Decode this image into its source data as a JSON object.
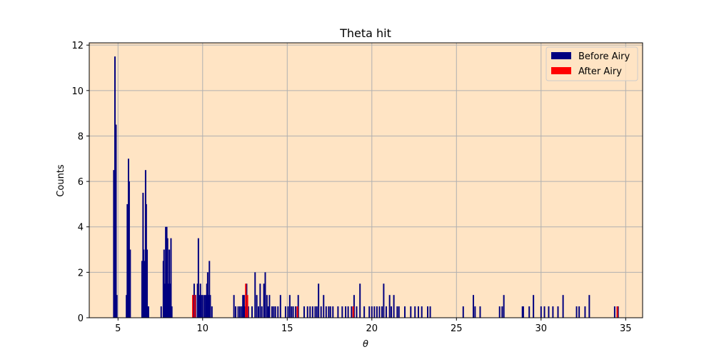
{
  "colors": {
    "plot_background": "#FFE4C4",
    "before": "#000080",
    "after": "#FF0000",
    "grid": "#B0B0B0"
  },
  "chart_data": {
    "type": "bar",
    "title": "Theta hit",
    "xlabel": "θ",
    "ylabel": "Counts",
    "xlim": [
      3.3,
      36.0
    ],
    "ylim": [
      0,
      12.1
    ],
    "xticks": [
      5,
      10,
      15,
      20,
      25,
      30,
      35
    ],
    "yticks": [
      0,
      2,
      4,
      6,
      8,
      10,
      12
    ],
    "grid": true,
    "legend_position": "top-right",
    "bar_width": 0.08,
    "series": [
      {
        "name": "Before Airy",
        "color": "#000080",
        "points": [
          [
            4.75,
            6.5
          ],
          [
            4.82,
            11.5
          ],
          [
            4.88,
            8.5
          ],
          [
            4.93,
            1.0
          ],
          [
            5.5,
            1.0
          ],
          [
            5.55,
            5.0
          ],
          [
            5.62,
            7.0
          ],
          [
            5.66,
            6.0
          ],
          [
            5.72,
            3.0
          ],
          [
            6.42,
            2.5
          ],
          [
            6.48,
            5.5
          ],
          [
            6.52,
            3.0
          ],
          [
            6.58,
            2.5
          ],
          [
            6.63,
            6.5
          ],
          [
            6.67,
            5.0
          ],
          [
            6.72,
            3.0
          ],
          [
            6.8,
            0.5
          ],
          [
            7.55,
            0.5
          ],
          [
            7.68,
            2.5
          ],
          [
            7.72,
            3.0
          ],
          [
            7.78,
            1.5
          ],
          [
            7.82,
            4.0
          ],
          [
            7.88,
            4.0
          ],
          [
            7.93,
            3.5
          ],
          [
            7.97,
            1.5
          ],
          [
            8.03,
            3.0
          ],
          [
            8.07,
            1.5
          ],
          [
            8.13,
            3.5
          ],
          [
            8.18,
            0.5
          ],
          [
            9.45,
            1.0
          ],
          [
            9.5,
            1.5
          ],
          [
            9.58,
            1.0
          ],
          [
            9.7,
            1.5
          ],
          [
            9.75,
            3.5
          ],
          [
            9.8,
            1.0
          ],
          [
            9.87,
            1.5
          ],
          [
            9.92,
            1.0
          ],
          [
            10.0,
            1.0
          ],
          [
            10.1,
            1.0
          ],
          [
            10.18,
            1.0
          ],
          [
            10.25,
            1.5
          ],
          [
            10.3,
            2.0
          ],
          [
            10.35,
            1.0
          ],
          [
            10.4,
            2.5
          ],
          [
            10.45,
            1.0
          ],
          [
            10.55,
            0.5
          ],
          [
            11.85,
            1.0
          ],
          [
            11.95,
            0.5
          ],
          [
            12.1,
            0.5
          ],
          [
            12.2,
            0.5
          ],
          [
            12.3,
            0.5
          ],
          [
            12.38,
            1.0
          ],
          [
            12.45,
            1.0
          ],
          [
            12.52,
            0.5
          ],
          [
            12.6,
            1.5
          ],
          [
            12.7,
            0.5
          ],
          [
            12.92,
            0.5
          ],
          [
            13.1,
            2.0
          ],
          [
            13.2,
            1.0
          ],
          [
            13.3,
            0.5
          ],
          [
            13.4,
            1.5
          ],
          [
            13.5,
            0.5
          ],
          [
            13.62,
            1.5
          ],
          [
            13.7,
            2.0
          ],
          [
            13.8,
            1.0
          ],
          [
            13.88,
            0.5
          ],
          [
            13.95,
            1.0
          ],
          [
            14.1,
            0.5
          ],
          [
            14.2,
            0.5
          ],
          [
            14.3,
            0.5
          ],
          [
            14.45,
            0.5
          ],
          [
            14.6,
            1.0
          ],
          [
            14.9,
            0.5
          ],
          [
            15.05,
            0.5
          ],
          [
            15.15,
            1.0
          ],
          [
            15.25,
            0.5
          ],
          [
            15.35,
            0.5
          ],
          [
            15.5,
            0.5
          ],
          [
            15.65,
            1.0
          ],
          [
            16.0,
            0.5
          ],
          [
            16.2,
            0.5
          ],
          [
            16.35,
            0.5
          ],
          [
            16.5,
            0.5
          ],
          [
            16.65,
            0.5
          ],
          [
            16.75,
            0.5
          ],
          [
            16.85,
            1.5
          ],
          [
            17.0,
            0.5
          ],
          [
            17.15,
            1.0
          ],
          [
            17.3,
            0.5
          ],
          [
            17.45,
            0.5
          ],
          [
            17.55,
            0.5
          ],
          [
            17.7,
            0.5
          ],
          [
            18.0,
            0.5
          ],
          [
            18.25,
            0.5
          ],
          [
            18.45,
            0.5
          ],
          [
            18.6,
            0.5
          ],
          [
            18.8,
            0.5
          ],
          [
            18.95,
            1.0
          ],
          [
            19.1,
            0.5
          ],
          [
            19.3,
            1.5
          ],
          [
            19.55,
            0.5
          ],
          [
            19.85,
            0.5
          ],
          [
            20.0,
            0.5
          ],
          [
            20.15,
            0.5
          ],
          [
            20.3,
            0.5
          ],
          [
            20.45,
            0.5
          ],
          [
            20.6,
            0.5
          ],
          [
            20.7,
            1.5
          ],
          [
            20.85,
            0.5
          ],
          [
            21.05,
            1.0
          ],
          [
            21.15,
            0.5
          ],
          [
            21.3,
            1.0
          ],
          [
            21.5,
            0.5
          ],
          [
            21.6,
            0.5
          ],
          [
            21.95,
            0.5
          ],
          [
            22.3,
            0.5
          ],
          [
            22.55,
            0.5
          ],
          [
            22.75,
            0.5
          ],
          [
            22.95,
            0.5
          ],
          [
            23.3,
            0.5
          ],
          [
            23.45,
            0.5
          ],
          [
            25.4,
            0.5
          ],
          [
            26.0,
            1.0
          ],
          [
            26.1,
            0.5
          ],
          [
            26.4,
            0.5
          ],
          [
            27.55,
            0.5
          ],
          [
            27.7,
            0.5
          ],
          [
            27.8,
            1.0
          ],
          [
            28.9,
            0.5
          ],
          [
            28.95,
            0.5
          ],
          [
            29.3,
            0.5
          ],
          [
            29.55,
            1.0
          ],
          [
            30.0,
            0.5
          ],
          [
            30.2,
            0.5
          ],
          [
            30.45,
            0.5
          ],
          [
            30.7,
            0.5
          ],
          [
            31.0,
            0.5
          ],
          [
            31.3,
            1.0
          ],
          [
            32.1,
            0.5
          ],
          [
            32.25,
            0.5
          ],
          [
            32.6,
            0.5
          ],
          [
            32.85,
            1.0
          ],
          [
            34.35,
            0.5
          ],
          [
            34.55,
            0.5
          ]
        ]
      },
      {
        "name": "After Airy",
        "color": "#FF0000",
        "points": [
          [
            9.42,
            1.0
          ],
          [
            9.55,
            1.0
          ],
          [
            12.55,
            1.5
          ],
          [
            12.65,
            1.0
          ],
          [
            15.6,
            0.5
          ],
          [
            18.9,
            0.5
          ],
          [
            34.5,
            0.5
          ]
        ]
      }
    ]
  }
}
